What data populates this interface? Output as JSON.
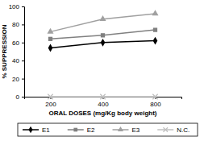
{
  "chart_data": {
    "type": "line",
    "x_label": "ORAL DOSES (mg/Kg body weight)",
    "y_label": "% SUPPRESSION",
    "categories": [
      "200",
      "400",
      "800"
    ],
    "ylim": [
      0,
      100
    ],
    "yticks": [
      0,
      20,
      40,
      60,
      80,
      100
    ],
    "grid": false,
    "legend": "bottom",
    "series": [
      {
        "name": "E1",
        "color": "#000000",
        "marker": "diamond",
        "line_style": "solid",
        "values": [
          54,
          60,
          62
        ]
      },
      {
        "name": "E2",
        "color": "#808080",
        "marker": "square",
        "line_style": "solid",
        "values": [
          64,
          68,
          74
        ]
      },
      {
        "name": "E3",
        "color": "#a0a0a0",
        "marker": "triangle",
        "line_style": "solid",
        "values": [
          72,
          86,
          92
        ]
      },
      {
        "name": "N.C.",
        "color": "#c0c0c0",
        "marker": "x",
        "line_style": "solid",
        "values": [
          0,
          0,
          0
        ]
      }
    ]
  }
}
